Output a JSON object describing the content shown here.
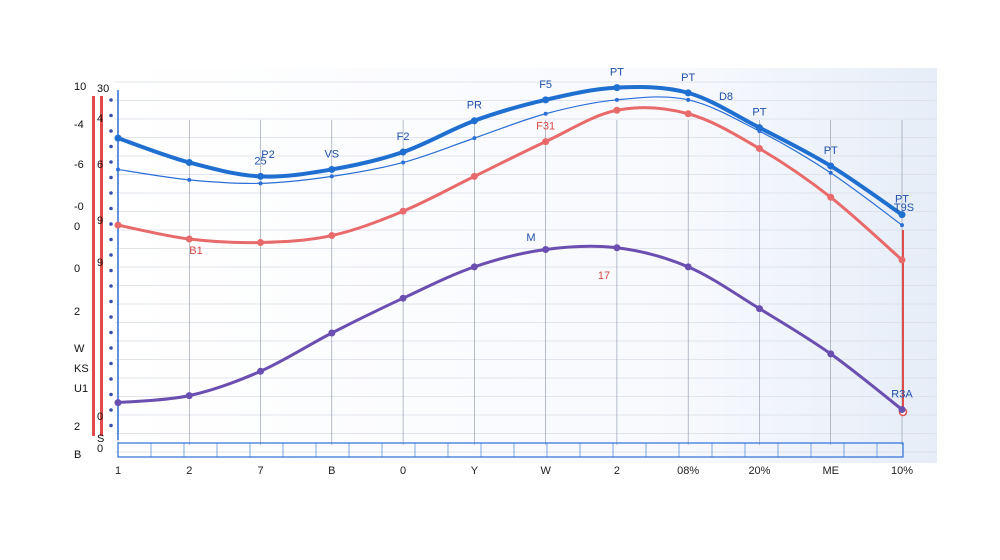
{
  "chart_data": {
    "type": "line",
    "x_labels": [
      "1",
      "2",
      "7",
      "B",
      "0",
      "Y",
      "W",
      "2",
      "08%",
      "20%",
      "ME",
      "10%"
    ],
    "y_labels_left": [
      "10",
      "-4",
      "-6",
      "-0",
      "0",
      "0",
      "2",
      "W",
      "KS",
      "U1",
      "2",
      "B"
    ],
    "y_labels_inner": [
      "30",
      "4",
      "6",
      "9",
      "9",
      "0",
      "S",
      "0"
    ],
    "series": [
      {
        "color": "#1f6fd1",
        "values": [
          8.1,
          7.4,
          7.0,
          7.2,
          7.7,
          8.6,
          9.2,
          9.55,
          9.4,
          8.4,
          7.3,
          5.9
        ],
        "point_labels": [
          "",
          "",
          "25",
          "VS",
          "F2",
          "PR",
          "F5",
          "PT",
          "PT",
          "PT",
          "PT",
          "PT"
        ]
      },
      {
        "color": "#2b6fd6",
        "values": [
          7.2,
          6.9,
          6.8,
          7.0,
          7.4,
          8.1,
          8.8,
          9.2,
          9.2,
          8.3,
          7.1,
          5.6
        ],
        "point_labels": [
          "",
          "",
          "",
          "",
          "",
          "",
          "",
          "",
          "",
          "",
          "",
          ""
        ]
      },
      {
        "color": "#e86a6a",
        "values": [
          5.6,
          5.2,
          5.1,
          5.3,
          6.0,
          7.0,
          8.0,
          8.9,
          8.8,
          7.8,
          6.4,
          4.6
        ],
        "point_labels": [
          "",
          "",
          "",
          "",
          "",
          "",
          "F31",
          "",
          "",
          "",
          "",
          ""
        ]
      },
      {
        "color": "#6a4fb0",
        "values": [
          0.5,
          0.7,
          1.4,
          2.5,
          3.5,
          4.4,
          4.9,
          4.95,
          4.4,
          3.2,
          1.9,
          0.3
        ],
        "point_labels": [
          "",
          "",
          "",
          "",
          "",
          "",
          "",
          "",
          "",
          "",
          "",
          "R3A"
        ]
      }
    ],
    "annotations": [
      "P2",
      "B1",
      "M",
      "17",
      "D8",
      "T9S"
    ],
    "grid": true
  }
}
